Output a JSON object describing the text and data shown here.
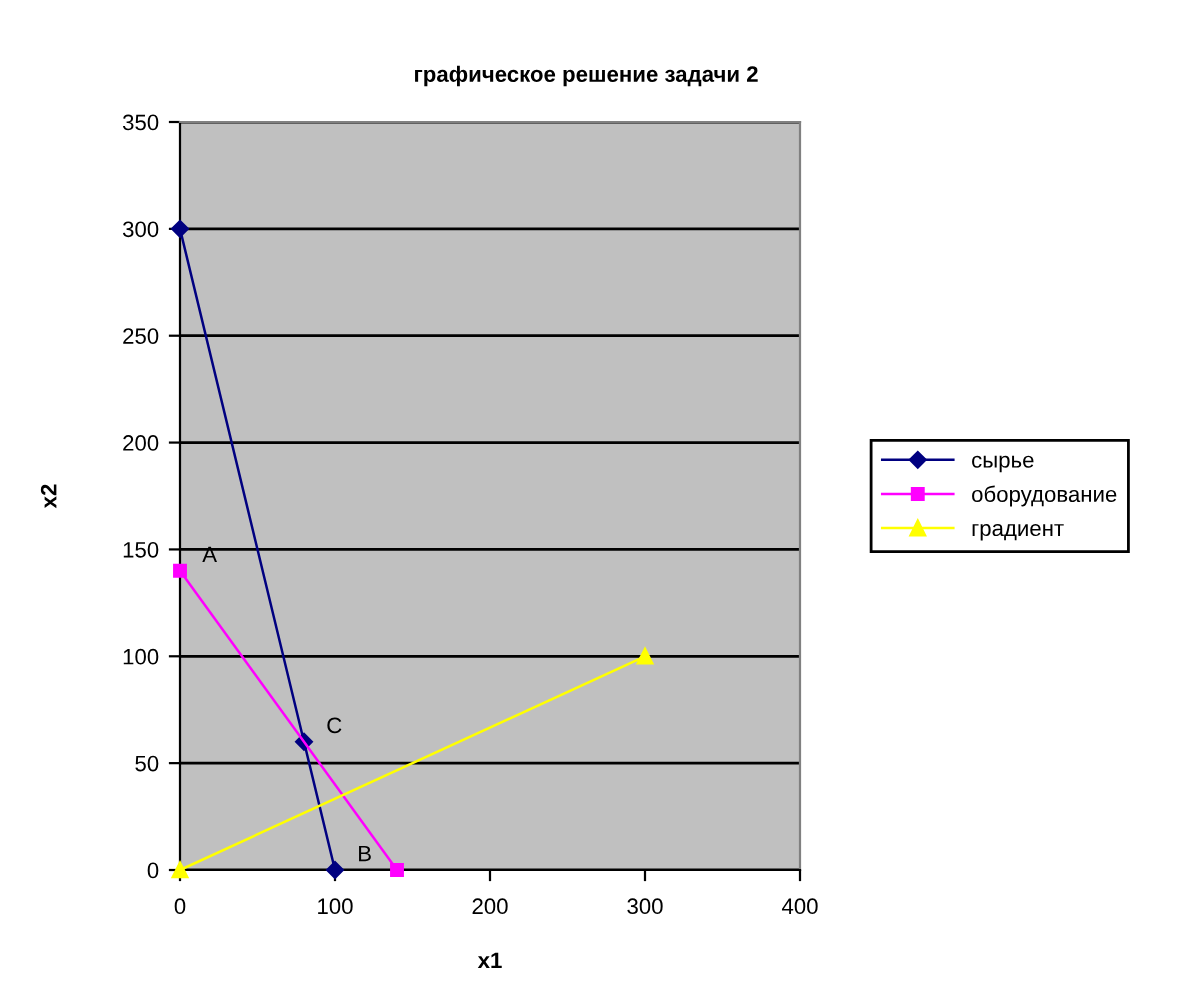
{
  "chart_data": {
    "type": "line",
    "title": "графическое решение задачи 2",
    "xlabel": "x1",
    "ylabel": "x2",
    "series": [
      {
        "name": "сырье",
        "color": "#000080",
        "x": [
          0,
          80,
          100
        ],
        "values": [
          300,
          60,
          0
        ],
        "marker": "diamond"
      },
      {
        "name": "оборудование",
        "color": "#ff00ff",
        "x": [
          0,
          140
        ],
        "values": [
          140,
          0
        ],
        "marker": "square"
      },
      {
        "name": "градиент",
        "color": "#ffff00",
        "x": [
          0,
          300
        ],
        "values": [
          0,
          100
        ],
        "marker": "triangle"
      }
    ],
    "annotations": [
      {
        "text": "A",
        "x": 0,
        "y": 140
      },
      {
        "text": "C",
        "x": 80,
        "y": 60
      },
      {
        "text": "B",
        "x": 100,
        "y": 0
      }
    ],
    "xlim": [
      0,
      400
    ],
    "ylim": [
      0,
      350
    ],
    "xticks": [
      0,
      100,
      200,
      300,
      400
    ],
    "yticks": [
      0,
      50,
      100,
      150,
      200,
      250,
      300,
      350
    ],
    "grid": "y",
    "legend": "right",
    "line_style": "solid"
  }
}
